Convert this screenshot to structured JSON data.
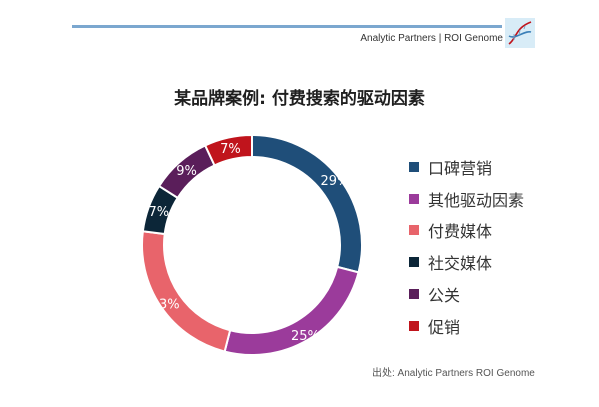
{
  "header": {
    "brand": "Analytic Partners | ROI Genome",
    "accent_color": "#7ba7cf",
    "logo_icon": "dna-helix-icon"
  },
  "chart_data": {
    "type": "pie",
    "title": "某品牌案例: 付费搜索的驱动因素",
    "categories": [
      "口碑营销",
      "其他驱动因素",
      "付费媒体",
      "社交媒体",
      "公关",
      "促销"
    ],
    "values": [
      29,
      25,
      23,
      7,
      9,
      7
    ],
    "value_labels": [
      "29%",
      "25%",
      "23%",
      "7%",
      "9%",
      "7%"
    ],
    "colors": [
      "#1f4e79",
      "#9b3b9b",
      "#e8646b",
      "#0c2638",
      "#5a1e5a",
      "#c0141c"
    ],
    "donut": true,
    "legend": "right",
    "source": "出处: Analytic Partners ROI Genome"
  }
}
